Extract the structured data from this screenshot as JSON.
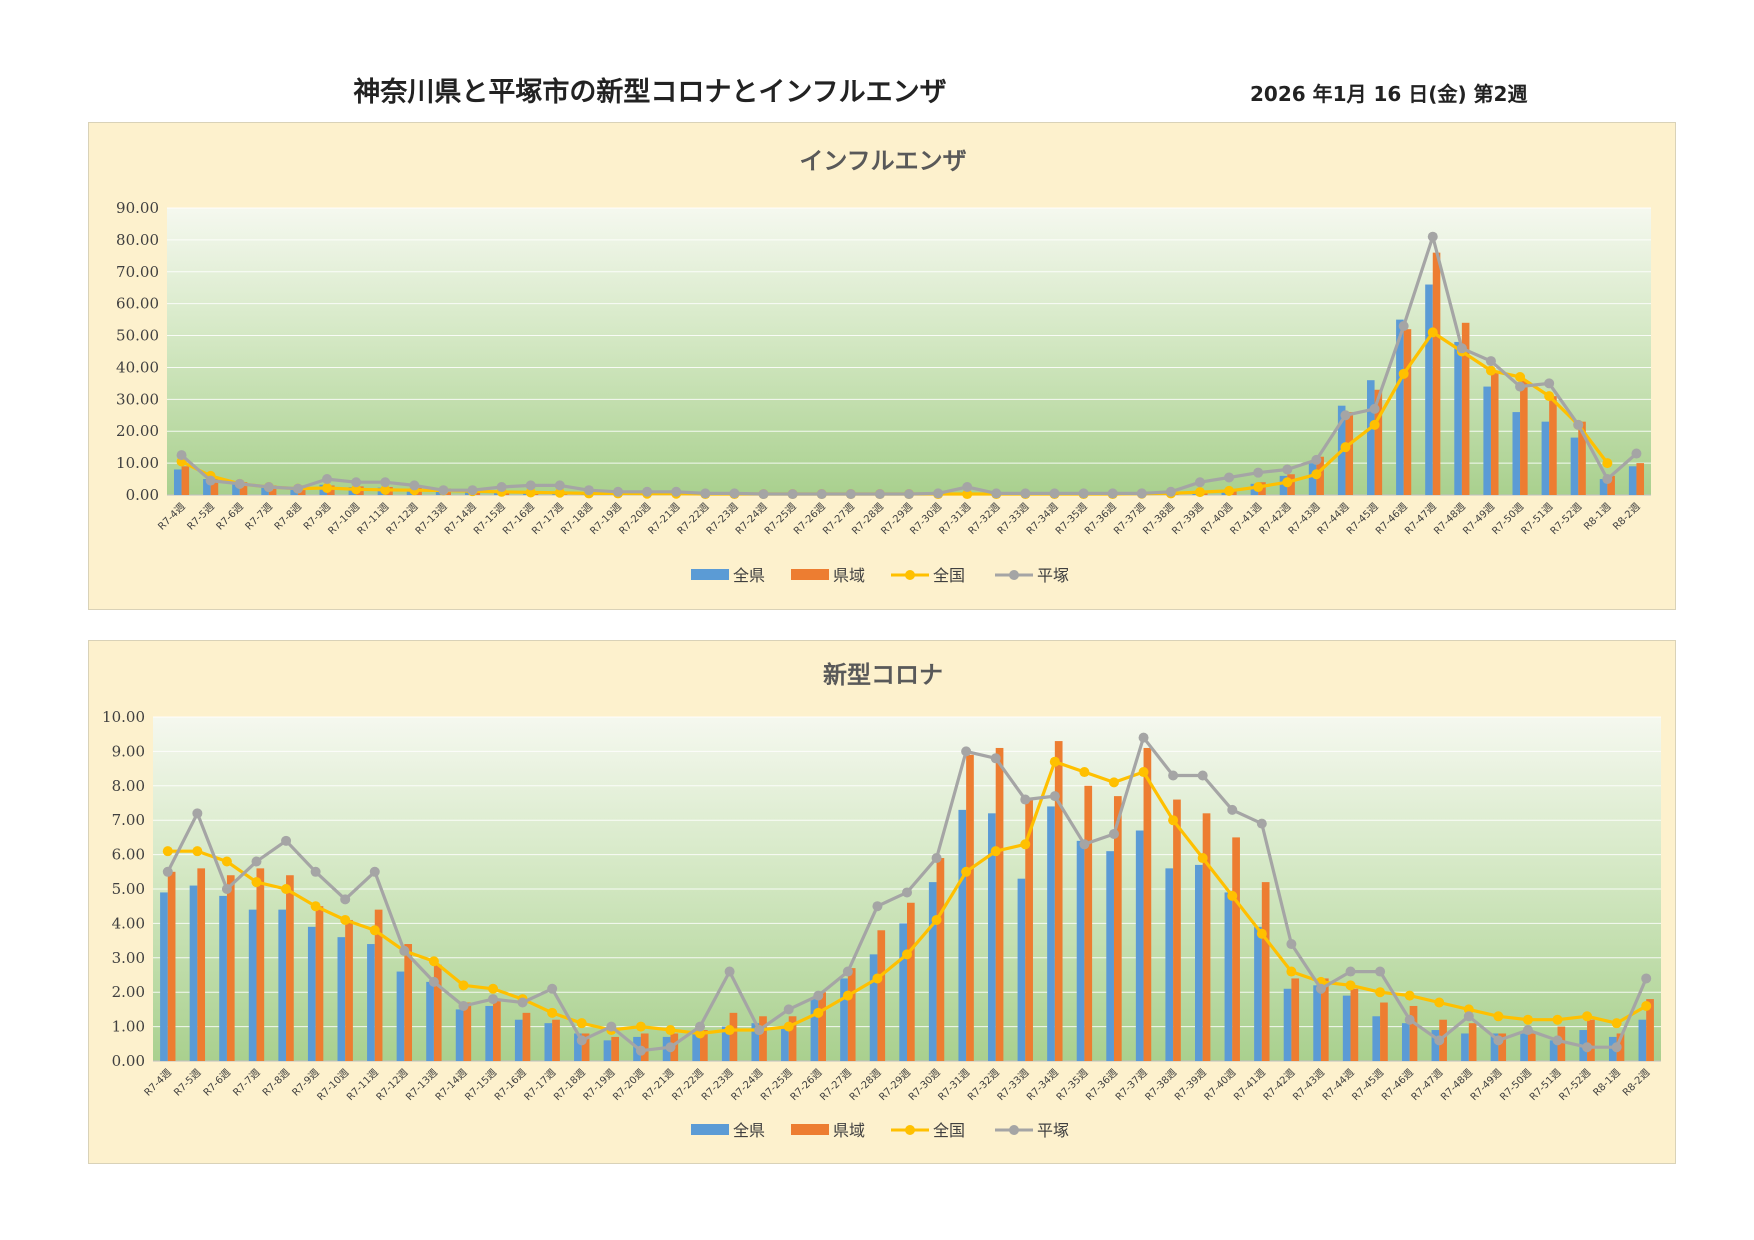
{
  "header": {
    "title": "神奈川県と平塚市の新型コロナとインフルエンザ",
    "date": "2026 年1月 16 日(金) 第2週"
  },
  "colors": {
    "zenken": "#5b9bd5",
    "kenki": "#ed7d31",
    "zenkoku": "#ffc000",
    "hiratsuka": "#a5a5a5",
    "panel_bg": "#fdf1cd"
  },
  "chart_data": [
    {
      "id": "flu",
      "type": "bar",
      "title": "インフルエンザ",
      "ylim": [
        0,
        90
      ],
      "yticks": [
        "0.00",
        "10.00",
        "20.00",
        "30.00",
        "40.00",
        "50.00",
        "60.00",
        "70.00",
        "80.00",
        "90.00"
      ],
      "legend_position": "bottom",
      "grid": true,
      "categories": [
        "R7-4週",
        "R7-5週",
        "R7-6週",
        "R7-7週",
        "R7-8週",
        "R7-9週",
        "R7-10週",
        "R7-11週",
        "R7-12週",
        "R7-13週",
        "R7-14週",
        "R7-15週",
        "R7-16週",
        "R7-17週",
        "R7-18週",
        "R7-19週",
        "R7-20週",
        "R7-21週",
        "R7-22週",
        "R7-23週",
        "R7-24週",
        "R7-25週",
        "R7-26週",
        "R7-27週",
        "R7-28週",
        "R7-29週",
        "R7-30週",
        "R7-31週",
        "R7-32週",
        "R7-33週",
        "R7-34週",
        "R7-35週",
        "R7-36週",
        "R7-37週",
        "R7-38週",
        "R7-39週",
        "R7-40週",
        "R7-41週",
        "R7-42週",
        "R7-43週",
        "R7-44週",
        "R7-45週",
        "R7-46週",
        "R7-47週",
        "R7-48週",
        "R7-49週",
        "R7-50週",
        "R7-51週",
        "R7-52週",
        "R8-1週",
        "R8-2週"
      ],
      "series": [
        {
          "name": "全県",
          "kind": "bar",
          "values": [
            8,
            5,
            3.5,
            3,
            2.5,
            3.2,
            2.5,
            2.3,
            2,
            1.5,
            1.2,
            1,
            0.8,
            0.6,
            0.5,
            0.4,
            0.4,
            0.3,
            0.3,
            0.3,
            0.3,
            0.2,
            0.2,
            0.2,
            0.2,
            0.3,
            0.3,
            0.4,
            0.3,
            0.3,
            0.3,
            0.3,
            0.3,
            0.4,
            0.5,
            0.8,
            1.5,
            3.5,
            6,
            10,
            28,
            36,
            55,
            66,
            48,
            34,
            26,
            23,
            18,
            5,
            9
          ]
        },
        {
          "name": "県域",
          "kind": "bar",
          "values": [
            9,
            5,
            4,
            3,
            3,
            3,
            2.7,
            2.5,
            2.2,
            2,
            1.5,
            1.2,
            1,
            0.8,
            0.6,
            0.5,
            0.4,
            0.4,
            0.4,
            0.3,
            0.3,
            0.3,
            0.3,
            0.3,
            0.3,
            0.3,
            0.3,
            0.4,
            0.4,
            0.4,
            0.4,
            0.4,
            0.4,
            0.5,
            0.7,
            1,
            1.8,
            4,
            6.5,
            12,
            26,
            33,
            52,
            76,
            54,
            39,
            36,
            31,
            23,
            6,
            10
          ]
        },
        {
          "name": "全国",
          "kind": "line",
          "values": [
            10.5,
            6,
            3.5,
            2.5,
            2,
            2.2,
            1.8,
            1.6,
            1.5,
            1.4,
            1.2,
            1,
            0.8,
            0.7,
            0.5,
            0.5,
            0.4,
            0.4,
            0.3,
            0.3,
            0.3,
            0.3,
            0.3,
            0.3,
            0.3,
            0.3,
            0.3,
            0.3,
            0.3,
            0.3,
            0.3,
            0.3,
            0.3,
            0.4,
            0.5,
            0.9,
            1.3,
            2.5,
            4,
            6.5,
            15,
            22,
            38,
            51,
            45,
            39,
            37,
            31,
            22,
            10,
            null
          ]
        },
        {
          "name": "平塚",
          "kind": "line",
          "values": [
            12.5,
            4.5,
            3.5,
            2.5,
            2,
            5,
            4,
            4,
            3,
            1.5,
            1.5,
            2.5,
            3,
            3,
            1.5,
            1,
            1,
            1,
            0.5,
            0.5,
            0.3,
            0.3,
            0.3,
            0.3,
            0.3,
            0.3,
            0.5,
            2.5,
            0.5,
            0.5,
            0.5,
            0.5,
            0.5,
            0.5,
            1,
            4,
            5.5,
            7,
            8,
            11,
            25,
            27,
            53,
            81,
            46,
            42,
            34,
            35,
            22,
            5,
            13
          ]
        }
      ]
    },
    {
      "id": "covid",
      "type": "bar",
      "title": "新型コロナ",
      "ylim": [
        0,
        10
      ],
      "yticks": [
        "0.00",
        "1.00",
        "2.00",
        "3.00",
        "4.00",
        "5.00",
        "6.00",
        "7.00",
        "8.00",
        "9.00",
        "10.00"
      ],
      "legend_position": "bottom",
      "grid": true,
      "categories": [
        "R7-4週",
        "R7-5週",
        "R7-6週",
        "R7-7週",
        "R7-8週",
        "R7-9週",
        "R7-10週",
        "R7-11週",
        "R7-12週",
        "R7-13週",
        "R7-14週",
        "R7-15週",
        "R7-16週",
        "R7-17週",
        "R7-18週",
        "R7-19週",
        "R7-20週",
        "R7-21週",
        "R7-22週",
        "R7-23週",
        "R7-24週",
        "R7-25週",
        "R7-26週",
        "R7-27週",
        "R7-28週",
        "R7-29週",
        "R7-30週",
        "R7-31週",
        "R7-32週",
        "R7-33週",
        "R7-34週",
        "R7-35週",
        "R7-36週",
        "R7-37週",
        "R7-38週",
        "R7-39週",
        "R7-40週",
        "R7-41週",
        "R7-42週",
        "R7-43週",
        "R7-44週",
        "R7-45週",
        "R7-46週",
        "R7-47週",
        "R7-48週",
        "R7-49週",
        "R7-50週",
        "R7-51週",
        "R7-52週",
        "R8-1週",
        "R8-2週"
      ],
      "series": [
        {
          "name": "全県",
          "kind": "bar",
          "values": [
            4.9,
            5.1,
            4.8,
            4.4,
            4.4,
            3.9,
            3.6,
            3.4,
            2.6,
            2.3,
            1.5,
            1.6,
            1.2,
            1.1,
            0.8,
            0.6,
            0.7,
            0.7,
            0.8,
            1,
            1.1,
            1,
            1.8,
            2.4,
            3.1,
            4,
            5.2,
            7.3,
            7.2,
            5.3,
            7.4,
            6.4,
            6.1,
            6.7,
            5.6,
            5.7,
            4.9,
            3.9,
            2.1,
            2.2,
            1.9,
            1.3,
            1.1,
            0.9,
            0.8,
            0.8,
            0.8,
            0.6,
            0.9,
            0.7,
            1.2
          ]
        },
        {
          "name": "県域",
          "kind": "bar",
          "values": [
            5.5,
            5.6,
            5.4,
            5.6,
            5.4,
            4.5,
            4.1,
            4.4,
            3.4,
            2.8,
            1.7,
            1.8,
            1.4,
            1.2,
            0.8,
            0.7,
            0.8,
            0.8,
            0.9,
            1.4,
            1.3,
            1.3,
            2,
            2.7,
            3.8,
            4.6,
            5.9,
            8.9,
            9.1,
            7.6,
            9.3,
            8,
            7.7,
            9.1,
            7.6,
            7.2,
            6.5,
            5.2,
            2.4,
            2.4,
            2.1,
            1.7,
            1.6,
            1.2,
            1.1,
            0.8,
            0.8,
            1,
            1.2,
            0.8,
            1.8
          ]
        },
        {
          "name": "全国",
          "kind": "line",
          "values": [
            6.1,
            6.1,
            5.8,
            5.2,
            5,
            4.5,
            4.1,
            3.8,
            3.2,
            2.9,
            2.2,
            2.1,
            1.8,
            1.4,
            1.1,
            0.9,
            1,
            0.9,
            0.8,
            0.9,
            0.9,
            1,
            1.4,
            1.9,
            2.4,
            3.1,
            4.1,
            5.5,
            6.1,
            6.3,
            8.7,
            8.4,
            8.1,
            8.4,
            7,
            5.9,
            4.8,
            3.7,
            2.6,
            2.3,
            2.2,
            2,
            1.9,
            1.7,
            1.5,
            1.3,
            1.2,
            1.2,
            1.3,
            1.1,
            1.6
          ]
        },
        {
          "name": "平塚",
          "kind": "line",
          "values": [
            5.5,
            7.2,
            5,
            5.8,
            6.4,
            5.5,
            4.7,
            5.5,
            3.2,
            2.3,
            1.6,
            1.8,
            1.7,
            2.1,
            0.6,
            1,
            0.3,
            0.4,
            1,
            2.6,
            0.9,
            1.5,
            1.9,
            2.6,
            4.5,
            4.9,
            5.9,
            9,
            8.8,
            7.6,
            7.7,
            6.3,
            6.6,
            9.4,
            8.3,
            8.3,
            7.3,
            6.9,
            3.4,
            2.1,
            2.6,
            2.6,
            1.2,
            0.6,
            1.3,
            0.6,
            0.9,
            0.6,
            0.4,
            0.4,
            2.4
          ]
        }
      ]
    }
  ]
}
